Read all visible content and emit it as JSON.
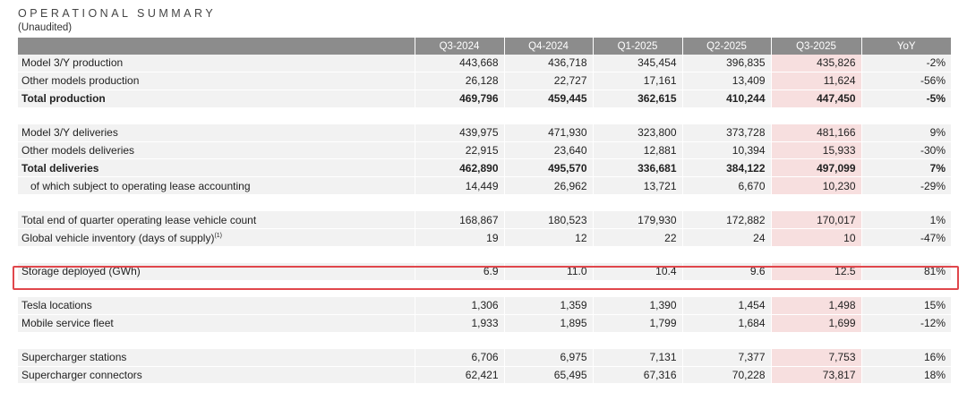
{
  "title": "OPERATIONAL SUMMARY",
  "subtitle": "(Unaudited)",
  "columns": [
    "Q3-2024",
    "Q4-2024",
    "Q1-2025",
    "Q2-2025",
    "Q3-2025",
    "YoY"
  ],
  "highlight_color": "#f7dfdf",
  "box_color": "#e0474c",
  "rows": [
    {
      "label": "Model 3/Y production",
      "values": [
        "443,668",
        "436,718",
        "345,454",
        "396,835",
        "435,826",
        "-2%"
      ]
    },
    {
      "label": "Other models production",
      "values": [
        "26,128",
        "22,727",
        "17,161",
        "13,409",
        "11,624",
        "-56%"
      ]
    },
    {
      "label": "Total production",
      "values": [
        "469,796",
        "459,445",
        "362,615",
        "410,244",
        "447,450",
        "-5%"
      ]
    },
    {
      "label": "Model 3/Y deliveries",
      "values": [
        "439,975",
        "471,930",
        "323,800",
        "373,728",
        "481,166",
        "9%"
      ]
    },
    {
      "label": "Other models deliveries",
      "values": [
        "22,915",
        "23,640",
        "12,881",
        "10,394",
        "15,933",
        "-30%"
      ]
    },
    {
      "label": "Total deliveries",
      "values": [
        "462,890",
        "495,570",
        "336,681",
        "384,122",
        "497,099",
        "7%"
      ]
    },
    {
      "label": "of which subject to operating lease accounting",
      "values": [
        "14,449",
        "26,962",
        "13,721",
        "6,670",
        "10,230",
        "-29%"
      ]
    },
    {
      "label": "Total end of quarter operating lease vehicle count",
      "values": [
        "168,867",
        "180,523",
        "179,930",
        "172,882",
        "170,017",
        "1%"
      ]
    },
    {
      "label": "Global vehicle inventory (days of supply)",
      "footnote": "(1)",
      "values": [
        "19",
        "12",
        "22",
        "24",
        "10",
        "-47%"
      ]
    },
    {
      "label": "Storage deployed (GWh)",
      "values": [
        "6.9",
        "11.0",
        "10.4",
        "9.6",
        "12.5",
        "81%"
      ]
    },
    {
      "label": "Tesla locations",
      "values": [
        "1,306",
        "1,359",
        "1,390",
        "1,454",
        "1,498",
        "15%"
      ]
    },
    {
      "label": "Mobile service fleet",
      "values": [
        "1,933",
        "1,895",
        "1,799",
        "1,684",
        "1,699",
        "-12%"
      ]
    },
    {
      "label": "Supercharger stations",
      "values": [
        "6,706",
        "6,975",
        "7,131",
        "7,377",
        "7,753",
        "16%"
      ]
    },
    {
      "label": "Supercharger connectors",
      "values": [
        "62,421",
        "65,495",
        "67,316",
        "70,228",
        "73,817",
        "18%"
      ]
    }
  ]
}
